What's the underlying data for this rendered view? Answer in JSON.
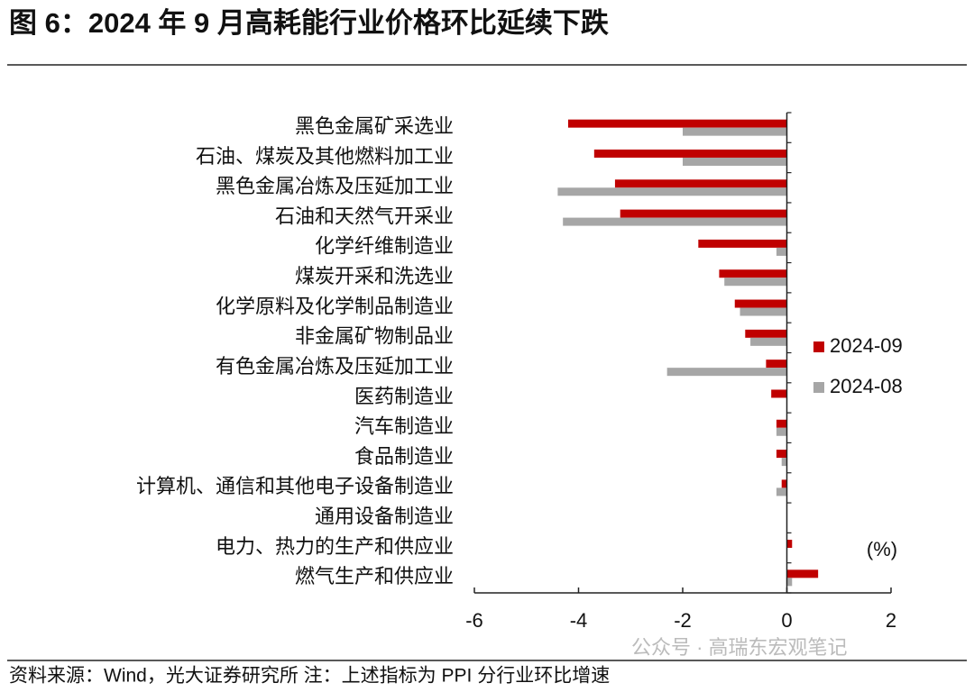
{
  "chart_data": {
    "type": "hbar",
    "title": "图 6：2024 年 9 月高耗能行业价格环比延续下跌",
    "source": "资料来源：Wind，光大证券研究所 注：上述指标为 PPI 分行业环比增速",
    "watermark": "公众号 · 高瑞东宏观笔记",
    "unit": "(%)",
    "categories": [
      "黑色金属矿采选业",
      "石油、煤炭及其他燃料加工业",
      "黑色金属冶炼及压延加工业",
      "石油和天然气开采业",
      "化学纤维制造业",
      "煤炭开采和洗选业",
      "化学原料及化学制品制造业",
      "非金属矿物制品业",
      "有色金属冶炼及压延加工业",
      "医药制造业",
      "汽车制造业",
      "食品制造业",
      "计算机、通信和其他电子设备制造业",
      "通用设备制造业",
      "电力、热力的生产和供应业",
      "燃气生产和供应业"
    ],
    "series": [
      {
        "name": "2024-09",
        "color": "#c00000",
        "values": [
          -4.2,
          -3.7,
          -3.3,
          -3.2,
          -1.7,
          -1.3,
          -1.0,
          -0.8,
          -0.4,
          -0.3,
          -0.2,
          -0.2,
          -0.1,
          0,
          0.1,
          0.6
        ]
      },
      {
        "name": "2024-08",
        "color": "#a6a6a6",
        "values": [
          -2.0,
          -2.0,
          -4.4,
          -4.3,
          -0.2,
          -1.2,
          -0.9,
          -0.7,
          -2.3,
          0,
          -0.2,
          -0.1,
          -0.2,
          0,
          0,
          0.1
        ]
      }
    ],
    "xlim": [
      -6,
      2
    ],
    "xticks": [
      -6,
      -4,
      -2,
      0,
      2
    ],
    "legend": "right"
  }
}
